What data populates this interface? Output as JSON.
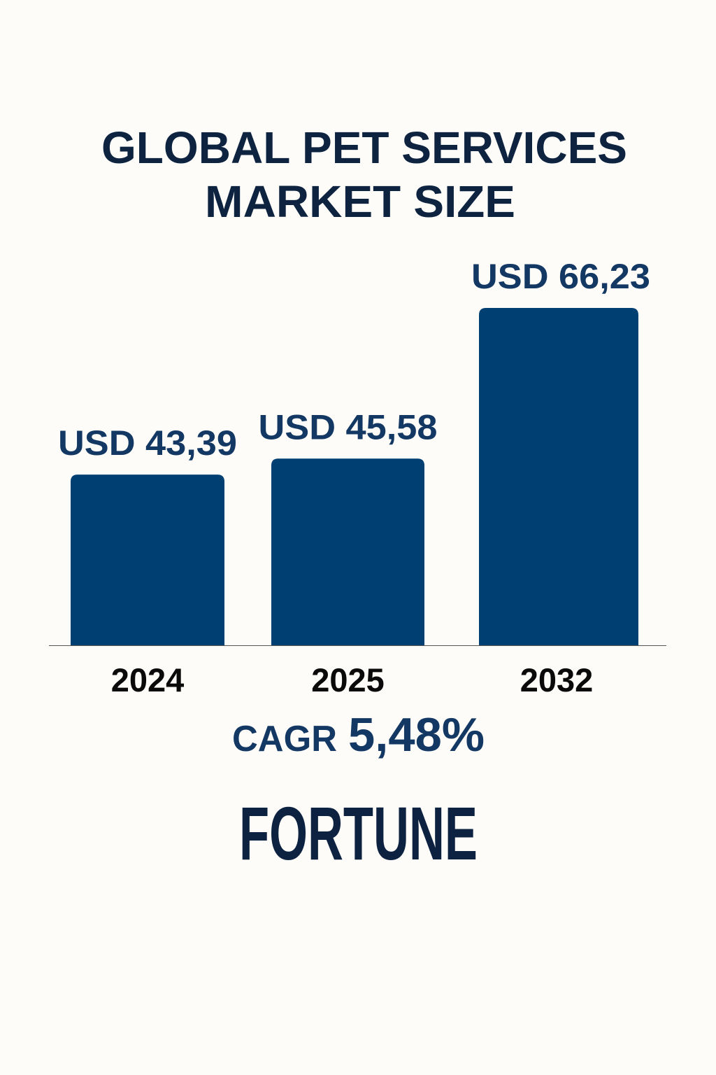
{
  "colors": {
    "bar": "#003f72",
    "title": "#0d2340",
    "label": "#133863",
    "year": "#0a0a0a",
    "logo": "#0c2240",
    "background": "#fdfcf8"
  },
  "chart_data": {
    "type": "bar",
    "title": "GLOBAL PET SERVICES MARKET SIZE",
    "title_lines": [
      "GLOBAL PET SERVICES",
      "MARKET SIZE"
    ],
    "categories": [
      "2024",
      "2025",
      "2032"
    ],
    "values": [
      43.39,
      45.58,
      66.23
    ],
    "data_labels": [
      "USD 43,39",
      "USD 45,58",
      "USD 66,23"
    ],
    "xlabel": "",
    "ylabel": "",
    "grid": false,
    "annotation": {
      "label": "CAGR",
      "value": "5,48%"
    }
  },
  "logo": {
    "text": "FORTUNE"
  }
}
